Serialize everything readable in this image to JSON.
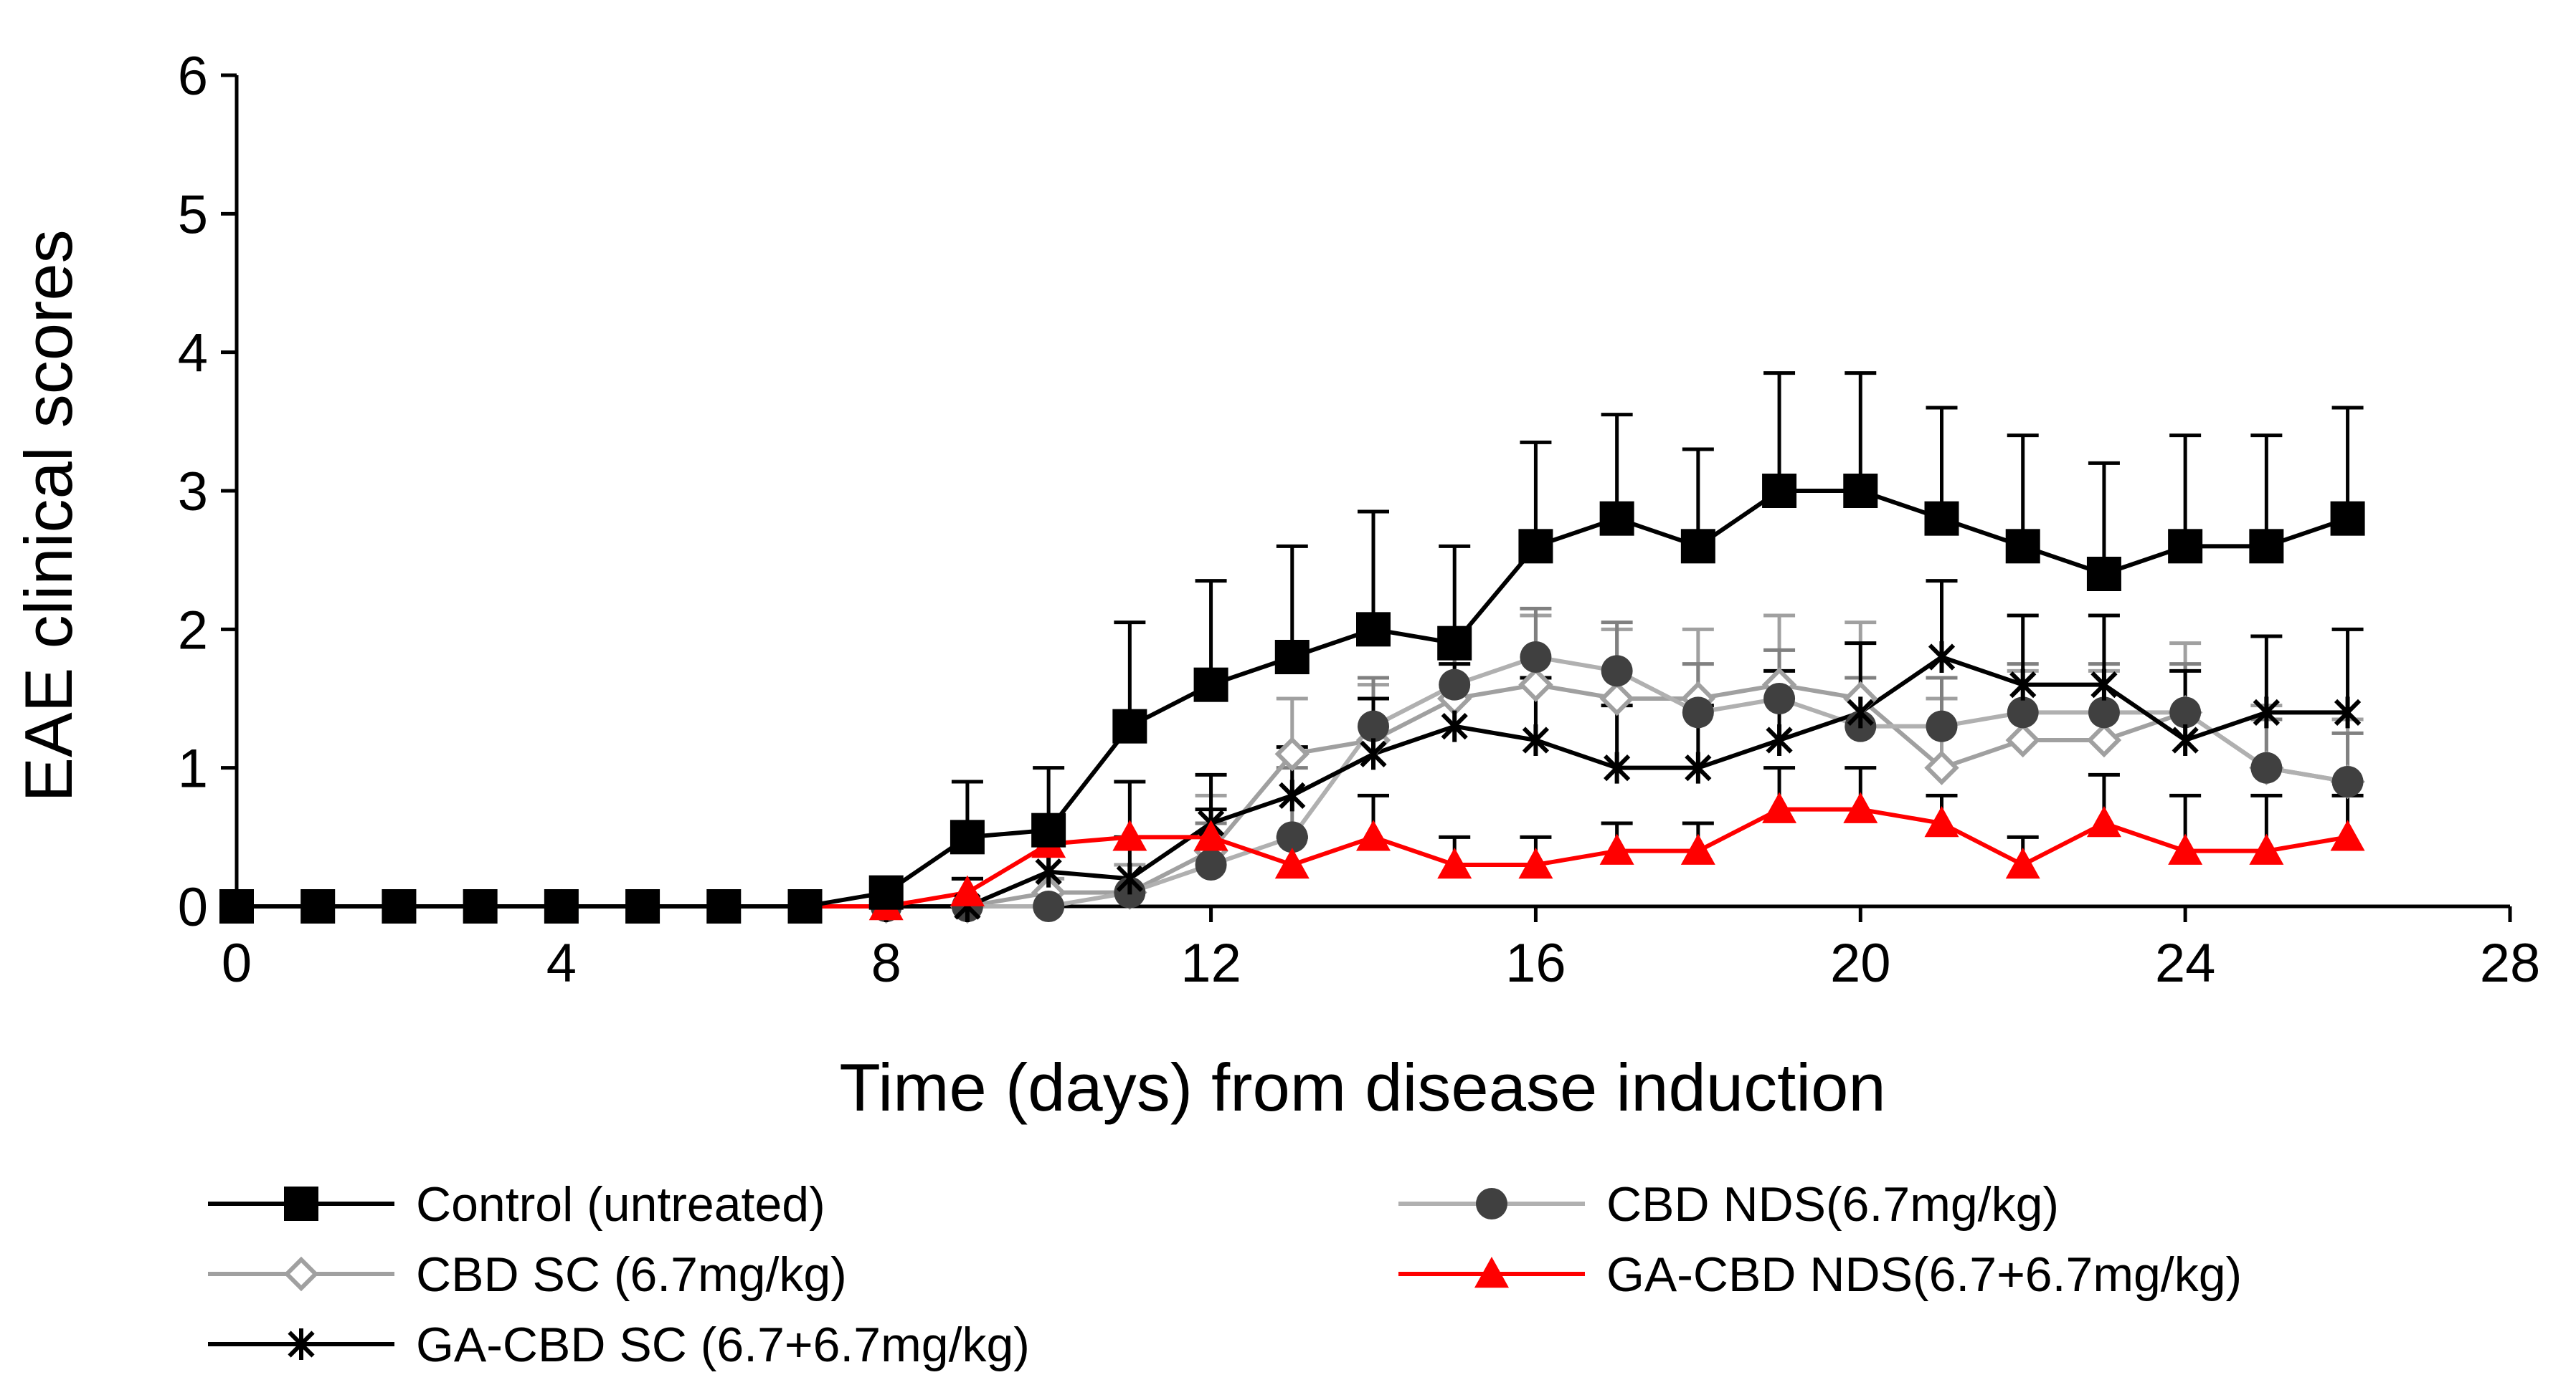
{
  "chart_data": {
    "type": "line",
    "title": "",
    "xlabel": "Time (days) from disease induction",
    "ylabel": "EAE clinical scores",
    "xlim": [
      0,
      28
    ],
    "ylim": [
      0,
      6
    ],
    "xticks": [
      0,
      4,
      8,
      12,
      16,
      20,
      24,
      28
    ],
    "yticks": [
      0,
      1,
      2,
      3,
      4,
      5,
      6
    ],
    "x": [
      0,
      1,
      2,
      3,
      4,
      5,
      6,
      7,
      8,
      9,
      10,
      11,
      12,
      13,
      14,
      15,
      16,
      17,
      18,
      19,
      20,
      21,
      22,
      23,
      24,
      25,
      26
    ],
    "grid": false,
    "legend_position": "bottom",
    "series": [
      {
        "name": "Control (untreated)",
        "color": "#000000",
        "marker": "square",
        "values": [
          0,
          0,
          0,
          0,
          0,
          0,
          0,
          0,
          0.1,
          0.5,
          0.55,
          1.3,
          1.6,
          1.8,
          2.0,
          1.9,
          2.6,
          2.8,
          2.6,
          3.0,
          3.0,
          2.8,
          2.6,
          2.4,
          2.6,
          2.6,
          2.8
        ],
        "errors": [
          0,
          0,
          0,
          0,
          0,
          0,
          0,
          0,
          0,
          0.4,
          0.45,
          0.75,
          0.75,
          0.8,
          0.85,
          0.7,
          0.75,
          0.75,
          0.7,
          0.85,
          0.85,
          0.8,
          0.8,
          0.8,
          0.8,
          0.8,
          0.8
        ]
      },
      {
        "name": "CBD SC (6.7mg/kg)",
        "color": "#a0a0a0",
        "marker": "diamond-open",
        "values": [
          0,
          0,
          0,
          0,
          0,
          0,
          0,
          0,
          0,
          0,
          0.1,
          0.1,
          0.4,
          1.1,
          1.2,
          1.5,
          1.6,
          1.5,
          1.5,
          1.6,
          1.5,
          1.0,
          1.2,
          1.2,
          1.4,
          1.0,
          0.9
        ],
        "errors": [
          0,
          0,
          0,
          0,
          0,
          0,
          0,
          0,
          0,
          0,
          0.1,
          0.2,
          0.4,
          0.4,
          0.4,
          0.5,
          0.5,
          0.5,
          0.5,
          0.5,
          0.55,
          0.5,
          0.5,
          0.5,
          0.5,
          0.45,
          0.45
        ]
      },
      {
        "name": "GA-CBD SC (6.7+6.7mg/kg)",
        "color": "#000000",
        "marker": "asterisk",
        "values": [
          0,
          0,
          0,
          0,
          0,
          0,
          0,
          0,
          0,
          0,
          0.25,
          0.2,
          0.6,
          0.8,
          1.1,
          1.3,
          1.2,
          1.0,
          1.0,
          1.2,
          1.4,
          1.8,
          1.6,
          1.6,
          1.2,
          1.4,
          1.4
        ],
        "errors": [
          0,
          0,
          0,
          0,
          0,
          0,
          0,
          0,
          0,
          0.2,
          0.3,
          0.3,
          0.35,
          0.35,
          0.4,
          0.45,
          0.45,
          0.45,
          0.45,
          0.5,
          0.5,
          0.55,
          0.5,
          0.5,
          0.5,
          0.55,
          0.6
        ]
      },
      {
        "name": "CBD NDS(6.7mg/kg)",
        "color": "#404040",
        "marker": "circle",
        "values": [
          0,
          0,
          0,
          0,
          0,
          0,
          0,
          0,
          0,
          0,
          0,
          0.1,
          0.3,
          0.5,
          1.3,
          1.6,
          1.8,
          1.7,
          1.4,
          1.5,
          1.3,
          1.3,
          1.4,
          1.4,
          1.4,
          1.0,
          0.9
        ],
        "errors": [
          0,
          0,
          0,
          0,
          0,
          0,
          0,
          0,
          0,
          0,
          0,
          0,
          0.3,
          0.5,
          0.35,
          0.35,
          0.35,
          0.35,
          0.35,
          0.35,
          0.35,
          0.35,
          0.35,
          0.35,
          0.35,
          0.35,
          0.35
        ]
      },
      {
        "name": "GA-CBD NDS(6.7+6.7mg/kg)",
        "color": "#ff0000",
        "marker": "triangle",
        "values": [
          0,
          0,
          0,
          0,
          0,
          0,
          0,
          0,
          0,
          0.1,
          0.45,
          0.5,
          0.5,
          0.3,
          0.5,
          0.3,
          0.3,
          0.4,
          0.4,
          0.7,
          0.7,
          0.6,
          0.3,
          0.6,
          0.4,
          0.4,
          0.5
        ],
        "errors": [
          0,
          0,
          0,
          0,
          0,
          0,
          0,
          0,
          0,
          0.1,
          0.1,
          0.4,
          0.2,
          0.2,
          0.3,
          0.2,
          0.2,
          0.2,
          0.2,
          0.3,
          0.3,
          0.2,
          0.2,
          0.35,
          0.4,
          0.4,
          0.3
        ]
      }
    ]
  }
}
